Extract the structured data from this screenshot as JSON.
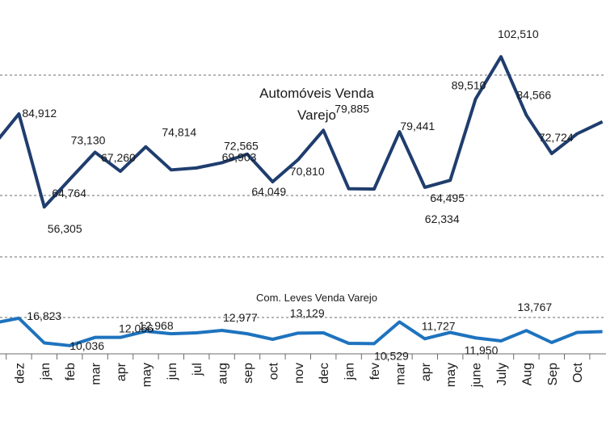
{
  "chart_data": {
    "type": "line",
    "categories": [
      "",
      "dez",
      "jan",
      "feb",
      "mar",
      "apr",
      "may",
      "jun",
      "jul",
      "aug",
      "sep",
      "oct",
      "nov",
      "dec",
      "jan",
      "fev",
      "mar",
      "apr",
      "may",
      "june",
      "July",
      "Aug",
      "Sep",
      "Oct",
      ""
    ],
    "series": [
      {
        "name": "Automóveis Venda Varejo",
        "color": "#1f3d6e",
        "values": [
          75300,
          84912,
          56305,
          64764,
          73130,
          67260,
          74814,
          67700,
          68300,
          69903,
          72565,
          64049,
          70810,
          79885,
          61900,
          61800,
          79441,
          62334,
          64495,
          89510,
          102510,
          84566,
          72724,
          78800,
          82500
        ],
        "labels": [
          null,
          "84,912",
          "56,305",
          "64,764",
          "73,130",
          "67,260",
          "74,814",
          null,
          null,
          "69,903",
          "72,565",
          "64,049",
          "70,810",
          "79,885",
          null,
          null,
          "79,441",
          "62,334",
          "64,495",
          "89,510",
          "102,510",
          "84,566",
          "72,724",
          null,
          null
        ]
      },
      {
        "name": "Com. Leves Venda Varejo",
        "color": "#1e73be",
        "values": [
          15600,
          16823,
          10700,
          10036,
          12066,
          12066,
          13600,
          12968,
          13200,
          13800,
          12977,
          11600,
          13129,
          13200,
          10600,
          10529,
          15900,
          11727,
          13300,
          11950,
          11200,
          13767,
          10800,
          13300,
          13500
        ],
        "labels": [
          null,
          "16,823",
          null,
          "10,036",
          null,
          "12,066",
          null,
          "12,968",
          null,
          null,
          "12,977",
          null,
          "13,129",
          null,
          null,
          "10,529",
          null,
          "11,727",
          null,
          "11,950",
          null,
          "13,767",
          null,
          null,
          null
        ]
      }
    ],
    "annotations": [
      "Automóveis Venda",
      "Varejo",
      "Com. Leves Venda Varejo"
    ],
    "grid": true
  }
}
